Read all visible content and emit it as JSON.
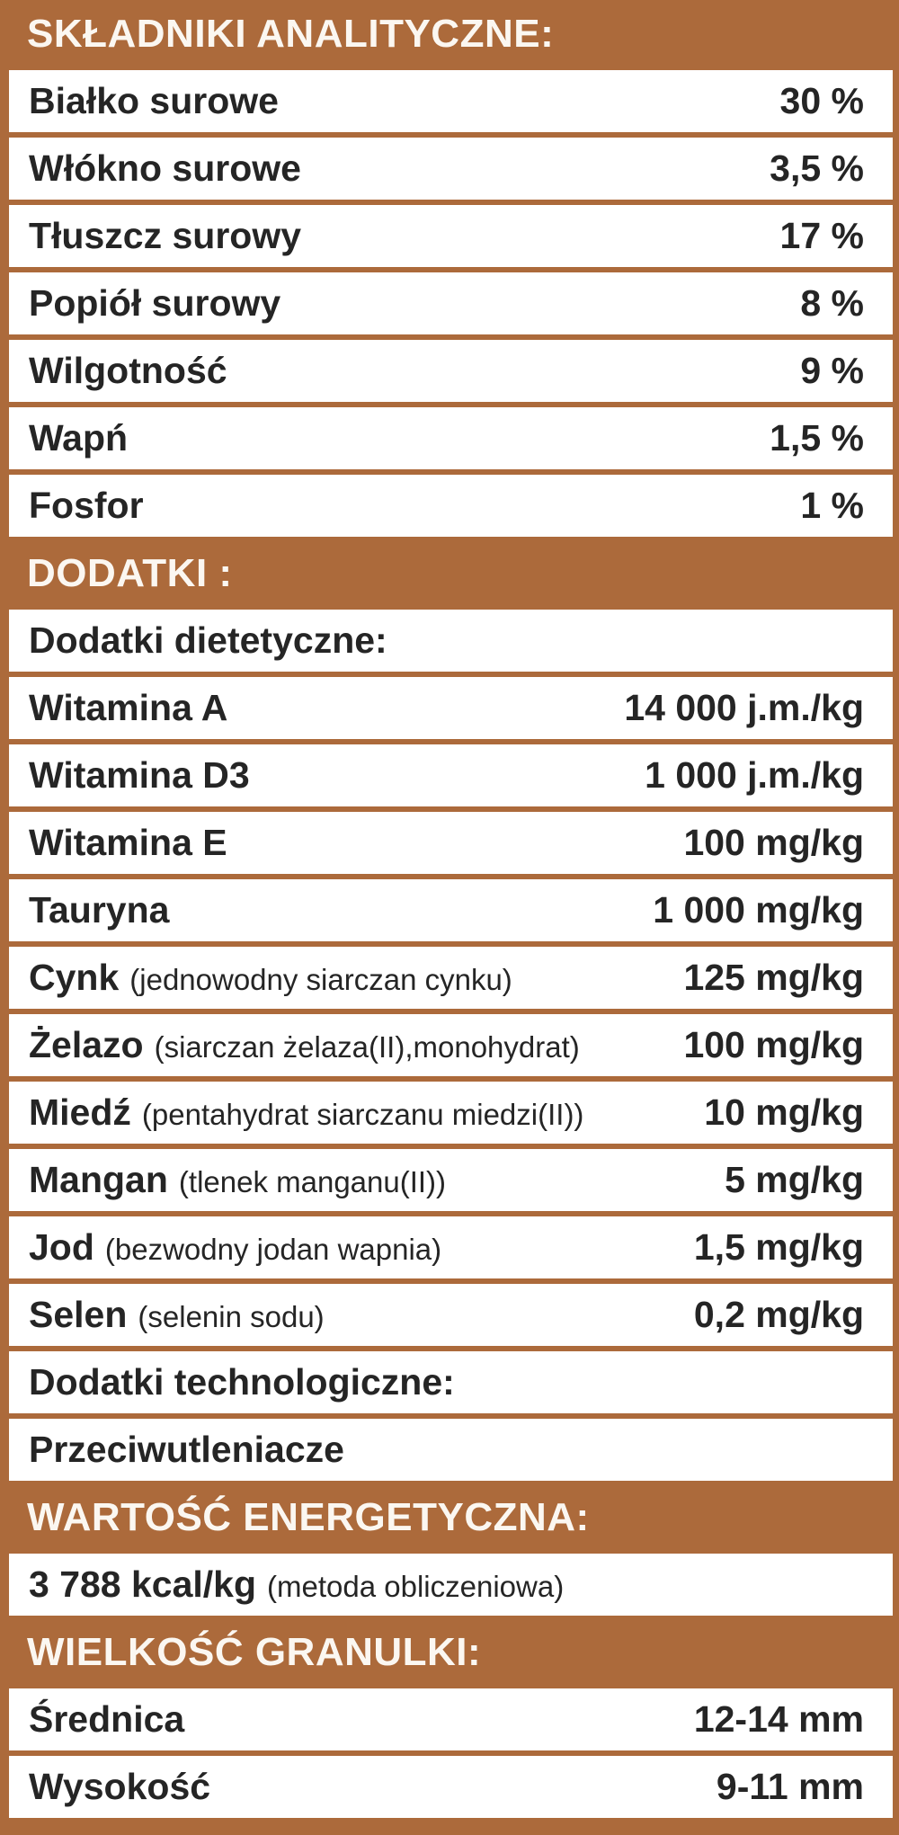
{
  "colors": {
    "accent_brown": "#AC6A3B",
    "row_background": "#FFFFFF",
    "body_text": "#252525",
    "header_text": "#FBF7F1"
  },
  "analytical": {
    "header": "SKŁADNIKI ANALITYCZNE:",
    "rows": [
      {
        "label": "Białko surowe",
        "value": "30 %"
      },
      {
        "label": "Włókno surowe",
        "value": "3,5 %"
      },
      {
        "label": "Tłuszcz surowy",
        "value": "17 %"
      },
      {
        "label": "Popiół surowy",
        "value": "8 %"
      },
      {
        "label": "Wilgotność",
        "value": "9 %"
      },
      {
        "label": "Wapń",
        "value": "1,5 %"
      },
      {
        "label": "Fosfor",
        "value": "1 %"
      }
    ]
  },
  "additives": {
    "header": "DODATKI :",
    "dietary_group_label": "Dodatki dietetyczne:",
    "rows": [
      {
        "label": "Witamina A",
        "detail": "",
        "value": "14 000 j.m./kg"
      },
      {
        "label": "Witamina D3",
        "detail": "",
        "value": "1 000 j.m./kg"
      },
      {
        "label": "Witamina E",
        "detail": "",
        "value": "100 mg/kg"
      },
      {
        "label": "Tauryna",
        "detail": "",
        "value": "1 000 mg/kg"
      },
      {
        "label": "Cynk",
        "detail": "(jednowodny siarczan cynku)",
        "value": "125 mg/kg"
      },
      {
        "label": "Żelazo",
        "detail": "(siarczan żelaza(II),monohydrat)",
        "value": "100 mg/kg"
      },
      {
        "label": "Miedź",
        "detail": "(pentahydrat siarczanu miedzi(II))",
        "value": "10 mg/kg"
      },
      {
        "label": "Mangan",
        "detail": "(tlenek manganu(II))",
        "value": "5 mg/kg"
      },
      {
        "label": "Jod",
        "detail": "(bezwodny jodan wapnia)",
        "value": "1,5 mg/kg"
      },
      {
        "label": "Selen",
        "detail": "(selenin sodu)",
        "value": "0,2 mg/kg"
      }
    ],
    "technological_group_label": "Dodatki technologiczne:",
    "technological_value": "Przeciwutleniacze"
  },
  "energy": {
    "header": "WARTOŚĆ ENERGETYCZNA:",
    "value": "3 788 kcal/kg",
    "method": "(metoda obliczeniowa)"
  },
  "kibble": {
    "header": "WIELKOŚĆ GRANULKI:",
    "rows": [
      {
        "label": "Średnica",
        "value": "12-14 mm"
      },
      {
        "label": "Wysokość",
        "value": "9-11 mm"
      }
    ]
  }
}
